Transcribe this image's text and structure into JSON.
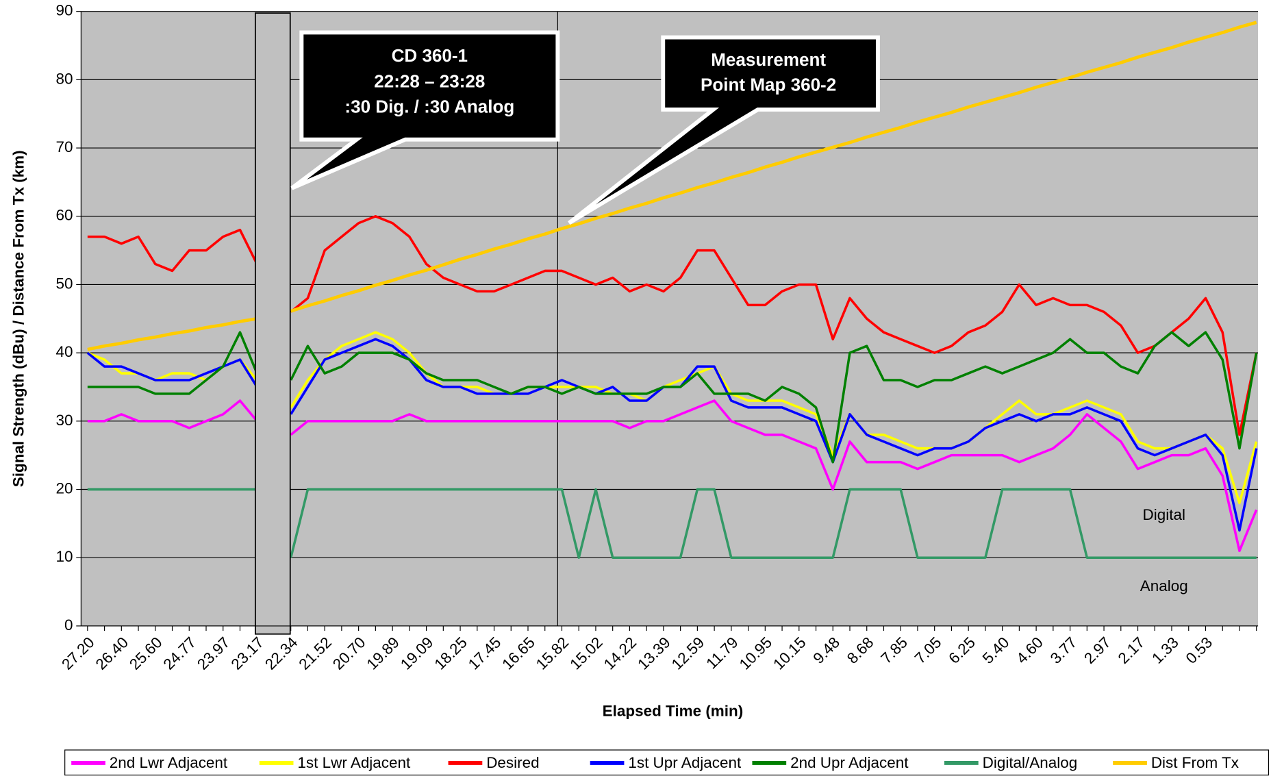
{
  "chart_data": {
    "type": "line",
    "y_label": "Signal Strength (dBu) / Distance From Tx (km)",
    "x_label": "Elapsed Time (min)",
    "categories": [
      "27.20",
      null,
      "26.40",
      null,
      "25.60",
      null,
      "24.77",
      null,
      "23.97",
      null,
      "23.17",
      null,
      "22.34",
      null,
      "21.52",
      null,
      "20.70",
      null,
      "19.89",
      null,
      "19.09",
      null,
      "18.25",
      null,
      "17.45",
      null,
      "16.65",
      null,
      "15.82",
      null,
      "15.02",
      null,
      "14.22",
      null,
      "13.39",
      null,
      "12.59",
      null,
      "11.79",
      null,
      "10.95",
      null,
      "10.15",
      null,
      "9.48",
      null,
      "8.68",
      null,
      "7.85",
      null,
      "7.05",
      null,
      "6.25",
      null,
      "5.40",
      null,
      "4.60",
      null,
      "3.77",
      null,
      "2.97",
      null,
      "2.17",
      null,
      "1.33",
      null,
      "0.53",
      null,
      null,
      null
    ],
    "series": [
      {
        "name": "2nd Lwr Adjacent",
        "color": "#ff00ff",
        "values": [
          30,
          30,
          31,
          30,
          30,
          30,
          29,
          30,
          31,
          33,
          30,
          null,
          28,
          30,
          30,
          30,
          30,
          30,
          30,
          31,
          30,
          30,
          30,
          30,
          30,
          30,
          30,
          30,
          30,
          30,
          30,
          30,
          29,
          30,
          30,
          31,
          32,
          33,
          30,
          29,
          28,
          28,
          27,
          26,
          20,
          27,
          24,
          24,
          24,
          23,
          24,
          25,
          25,
          25,
          25,
          24,
          25,
          26,
          28,
          31,
          29,
          27,
          23,
          24,
          25,
          25,
          26,
          22,
          11,
          17
        ]
      },
      {
        "name": "1st Lwr Adjacent",
        "color": "#ffff00",
        "values": [
          40,
          39,
          37,
          37,
          36,
          37,
          37,
          36,
          38,
          39,
          36,
          null,
          32,
          36,
          39,
          41,
          42,
          43,
          42,
          40,
          37,
          35,
          35,
          35,
          34,
          34,
          35,
          35,
          35,
          35,
          35,
          34,
          34,
          33,
          35,
          36,
          37,
          38,
          34,
          33,
          33,
          33,
          32,
          31,
          25,
          31,
          28,
          28,
          27,
          26,
          26,
          26,
          27,
          29,
          31,
          33,
          31,
          31,
          32,
          33,
          32,
          31,
          27,
          26,
          26,
          27,
          28,
          26,
          18,
          27
        ]
      },
      {
        "name": "Desired",
        "color": "#ff0000",
        "values": [
          57,
          57,
          56,
          57,
          53,
          52,
          55,
          55,
          57,
          58,
          53,
          null,
          46,
          48,
          55,
          57,
          59,
          60,
          59,
          57,
          53,
          51,
          50,
          49,
          49,
          50,
          51,
          52,
          52,
          51,
          50,
          51,
          49,
          50,
          49,
          51,
          55,
          55,
          51,
          47,
          47,
          49,
          50,
          50,
          42,
          48,
          45,
          43,
          42,
          41,
          40,
          41,
          43,
          44,
          46,
          50,
          47,
          48,
          47,
          47,
          46,
          44,
          40,
          41,
          43,
          45,
          48,
          43,
          28,
          40
        ]
      },
      {
        "name": "1st Upr Adjacent",
        "color": "#0000ff",
        "values": [
          40,
          38,
          38,
          37,
          36,
          36,
          36,
          37,
          38,
          39,
          35,
          null,
          31,
          35,
          39,
          40,
          41,
          42,
          41,
          39,
          36,
          35,
          35,
          34,
          34,
          34,
          34,
          35,
          36,
          35,
          34,
          35,
          33,
          33,
          35,
          35,
          38,
          38,
          33,
          32,
          32,
          32,
          31,
          30,
          24,
          31,
          28,
          27,
          26,
          25,
          26,
          26,
          27,
          29,
          30,
          31,
          30,
          31,
          31,
          32,
          31,
          30,
          26,
          25,
          26,
          27,
          28,
          25,
          14,
          26
        ]
      },
      {
        "name": "2nd Upr Adjacent",
        "color": "#008000",
        "values": [
          35,
          35,
          35,
          35,
          34,
          34,
          34,
          36,
          38,
          43,
          37,
          null,
          36,
          41,
          37,
          38,
          40,
          40,
          40,
          39,
          37,
          36,
          36,
          36,
          35,
          34,
          35,
          35,
          34,
          35,
          34,
          34,
          34,
          34,
          35,
          35,
          37,
          34,
          34,
          34,
          33,
          35,
          34,
          32,
          24,
          40,
          41,
          36,
          36,
          35,
          36,
          36,
          37,
          38,
          37,
          38,
          39,
          40,
          42,
          40,
          40,
          38,
          37,
          41,
          43,
          41,
          43,
          39,
          26,
          40
        ]
      },
      {
        "name": "Digital/Analog",
        "color": "#339966",
        "values": [
          20,
          20,
          20,
          20,
          20,
          20,
          20,
          20,
          20,
          20,
          20,
          null,
          10,
          20,
          20,
          20,
          20,
          20,
          20,
          20,
          20,
          20,
          20,
          20,
          20,
          20,
          20,
          20,
          20,
          10,
          20,
          10,
          10,
          10,
          10,
          10,
          20,
          20,
          10,
          10,
          10,
          10,
          10,
          10,
          10,
          20,
          20,
          20,
          20,
          10,
          10,
          10,
          10,
          10,
          20,
          20,
          20,
          20,
          20,
          10,
          10,
          10,
          10,
          10,
          10,
          10,
          10,
          10,
          10,
          10
        ]
      },
      {
        "name": "Dist From Tx",
        "color": "#ffcc00",
        "values": [
          40.5,
          41.0,
          41.4,
          41.9,
          42.3,
          42.8,
          43.2,
          43.7,
          44.1,
          44.6,
          45.0,
          null,
          46.1,
          46.9,
          47.6,
          48.4,
          49.1,
          49.9,
          50.6,
          51.4,
          52.1,
          52.9,
          53.7,
          54.4,
          55.2,
          55.9,
          56.7,
          57.4,
          58.2,
          58.9,
          59.7,
          60.4,
          61.2,
          61.9,
          62.7,
          63.4,
          64.2,
          64.9,
          65.7,
          66.4,
          67.2,
          67.9,
          68.7,
          69.4,
          70.1,
          70.8,
          71.6,
          72.3,
          73.0,
          73.8,
          74.5,
          75.2,
          76.0,
          76.7,
          77.4,
          78.1,
          78.9,
          79.6,
          80.3,
          81.1,
          81.8,
          82.5,
          83.3,
          84.0,
          84.7,
          85.5,
          86.2,
          86.9,
          87.7,
          88.4
        ]
      }
    ],
    "ylim": [
      0,
      90
    ],
    "yticks": [
      0,
      10,
      20,
      30,
      40,
      50,
      60,
      70,
      80,
      90
    ],
    "grid": true,
    "annotations": [
      "CD 360-1",
      "22:28 – 23:28",
      ":30 Dig. / :30 Analog",
      "Measurement",
      "Point Map 360-2",
      "Digital",
      "Analog"
    ],
    "legend": "bottom"
  }
}
